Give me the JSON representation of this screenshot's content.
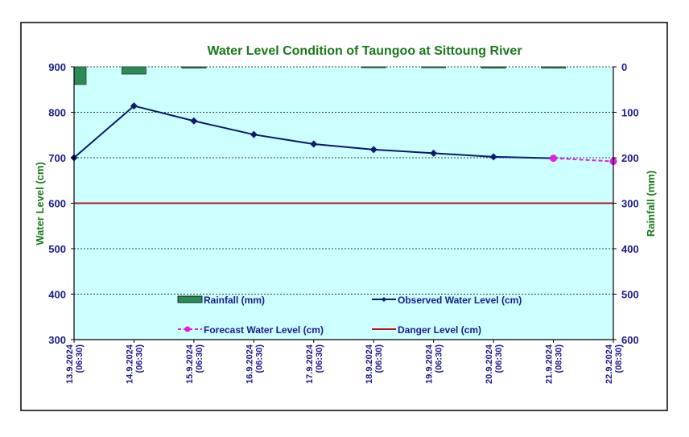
{
  "chart_data": {
    "type": "line",
    "title": "Water Level Condition of Taungoo at  Sittoung River",
    "xlabel": "",
    "ylabel": "Water Level (cm)",
    "y2label": "Rainfall (mm)",
    "ylim": [
      300,
      900
    ],
    "y2lim": [
      600,
      0
    ],
    "y2_inverted": true,
    "yticks": [
      "900",
      "800",
      "700",
      "600",
      "500",
      "400",
      "300"
    ],
    "y2ticks": [
      "0",
      "100",
      "200",
      "300",
      "400",
      "500",
      "600"
    ],
    "grid": true,
    "categories": [
      [
        "13.9.2024",
        "(06:30)"
      ],
      [
        "14.9.2024",
        "(06:30)"
      ],
      [
        "15.9.2024",
        "(06:30)"
      ],
      [
        "16.9.2024",
        "(06:30)"
      ],
      [
        "17.9.2024",
        "(06:30)"
      ],
      [
        "18.9.2024",
        "(06:30)"
      ],
      [
        "19.9.2024",
        "(06:30)"
      ],
      [
        "20.9.2024",
        "(06:30)"
      ],
      [
        "21.9.2024",
        "(08:30)"
      ],
      [
        "22.9.2024",
        "(08:30)"
      ]
    ],
    "series": [
      {
        "name": "Rainfall (mm)",
        "type": "bar",
        "axis": "y2",
        "color": "#2e8b57",
        "values": [
          39,
          16,
          3,
          0,
          0,
          0.5,
          0.5,
          3,
          3,
          null
        ]
      },
      {
        "name": "Observed Water Level (cm)",
        "type": "line",
        "axis": "y",
        "color": "#0a1a6e",
        "marker": "diamond",
        "values": [
          700,
          814,
          781,
          751,
          730,
          718,
          710,
          702,
          699,
          null
        ]
      },
      {
        "name": "Forecast Water Level (cm)",
        "type": "line",
        "axis": "y",
        "color": "#e020e0",
        "dashed": true,
        "marker": "circle",
        "values": [
          null,
          null,
          null,
          null,
          null,
          null,
          null,
          null,
          699,
          692
        ]
      },
      {
        "name": "Danger Level (cm)",
        "type": "line",
        "axis": "y",
        "color": "#b01818",
        "values": [
          600,
          600,
          600,
          600,
          600,
          600,
          600,
          600,
          600,
          600
        ]
      }
    ],
    "legend": {
      "placement": "inside-bottom",
      "entries": [
        "Rainfall (mm)",
        "Observed Water Level (cm)",
        "Forecast Water Level (cm)",
        "Danger Level (cm)"
      ]
    },
    "colors": {
      "plot_background": "#ccffff",
      "title": "#1a7a1a",
      "tick_text": "#1a1a8c"
    }
  }
}
